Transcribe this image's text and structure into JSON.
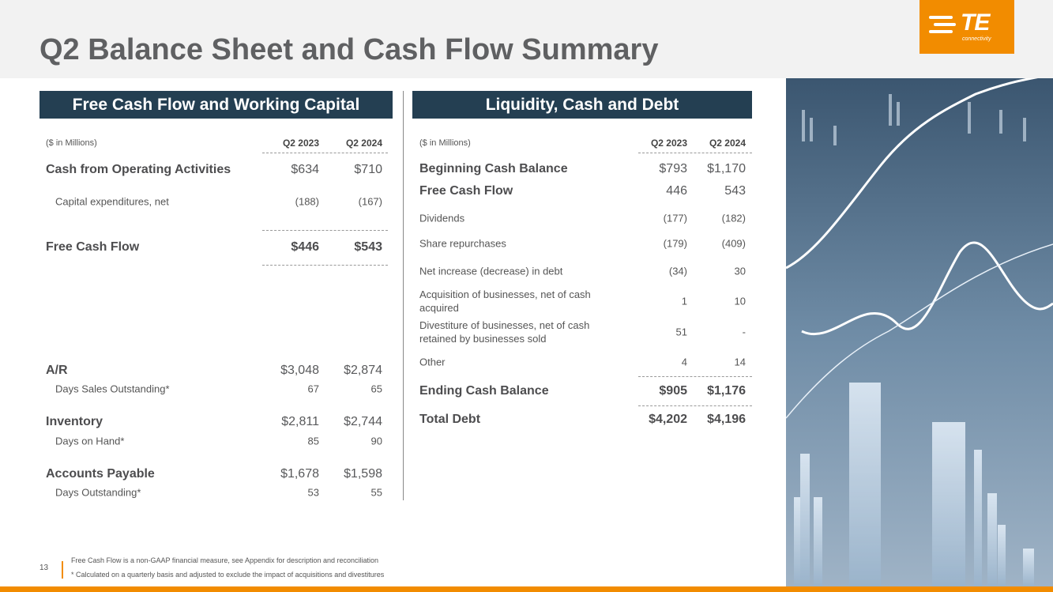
{
  "header": {
    "title": "Q2 Balance Sheet and Cash Flow Summary",
    "logo": {
      "mark": "TE",
      "sub": "connectivity"
    }
  },
  "left": {
    "title": "Free Cash Flow and Working Capital",
    "unit_note": "($ in Millions)",
    "columns": [
      "Q2 2023",
      "Q2 2024"
    ],
    "rows": [
      [
        "Cash from Operating Activities",
        "$634",
        "$710"
      ],
      [
        "Capital expenditures, net",
        "(188)",
        "(167)"
      ],
      [
        "Free Cash Flow",
        "$446",
        "$543"
      ],
      [
        "A/R",
        "$3,048",
        "$2,874"
      ],
      [
        "Days Sales Outstanding*",
        "67",
        "65"
      ],
      [
        "Inventory",
        "$2,811",
        "$2,744"
      ],
      [
        "Days on Hand*",
        "85",
        "90"
      ],
      [
        "Accounts Payable",
        "$1,678",
        "$1,598"
      ],
      [
        "Days Outstanding*",
        "53",
        "55"
      ]
    ]
  },
  "right": {
    "title": "Liquidity, Cash and Debt",
    "unit_note": "($ in Millions)",
    "columns": [
      "Q2 2023",
      "Q2 2024"
    ],
    "rows": [
      [
        "Beginning Cash Balance",
        "$793",
        "$1,170"
      ],
      [
        "Free Cash Flow",
        "446",
        "543"
      ],
      [
        "Dividends",
        "(177)",
        "(182)"
      ],
      [
        "Share repurchases",
        "(179)",
        "(409)"
      ],
      [
        "Net increase (decrease) in debt",
        "(34)",
        "30"
      ],
      [
        "Acquisition of businesses, net of cash acquired",
        "1",
        "10"
      ],
      [
        "Divestiture of businesses, net of cash retained by businesses sold",
        "51",
        "-"
      ],
      [
        "Other",
        "4",
        "14"
      ],
      [
        "Ending Cash Balance",
        "$905",
        "$1,176"
      ],
      [
        "Total Debt",
        "$4,202",
        "$4,196"
      ]
    ]
  },
  "footer": {
    "page": "13",
    "notes": [
      "Free Cash Flow is a non-GAAP financial measure, see Appendix for description and reconciliation",
      "* Calculated on a quarterly basis and adjusted to exclude the impact of acquisitions and divestitures"
    ]
  }
}
